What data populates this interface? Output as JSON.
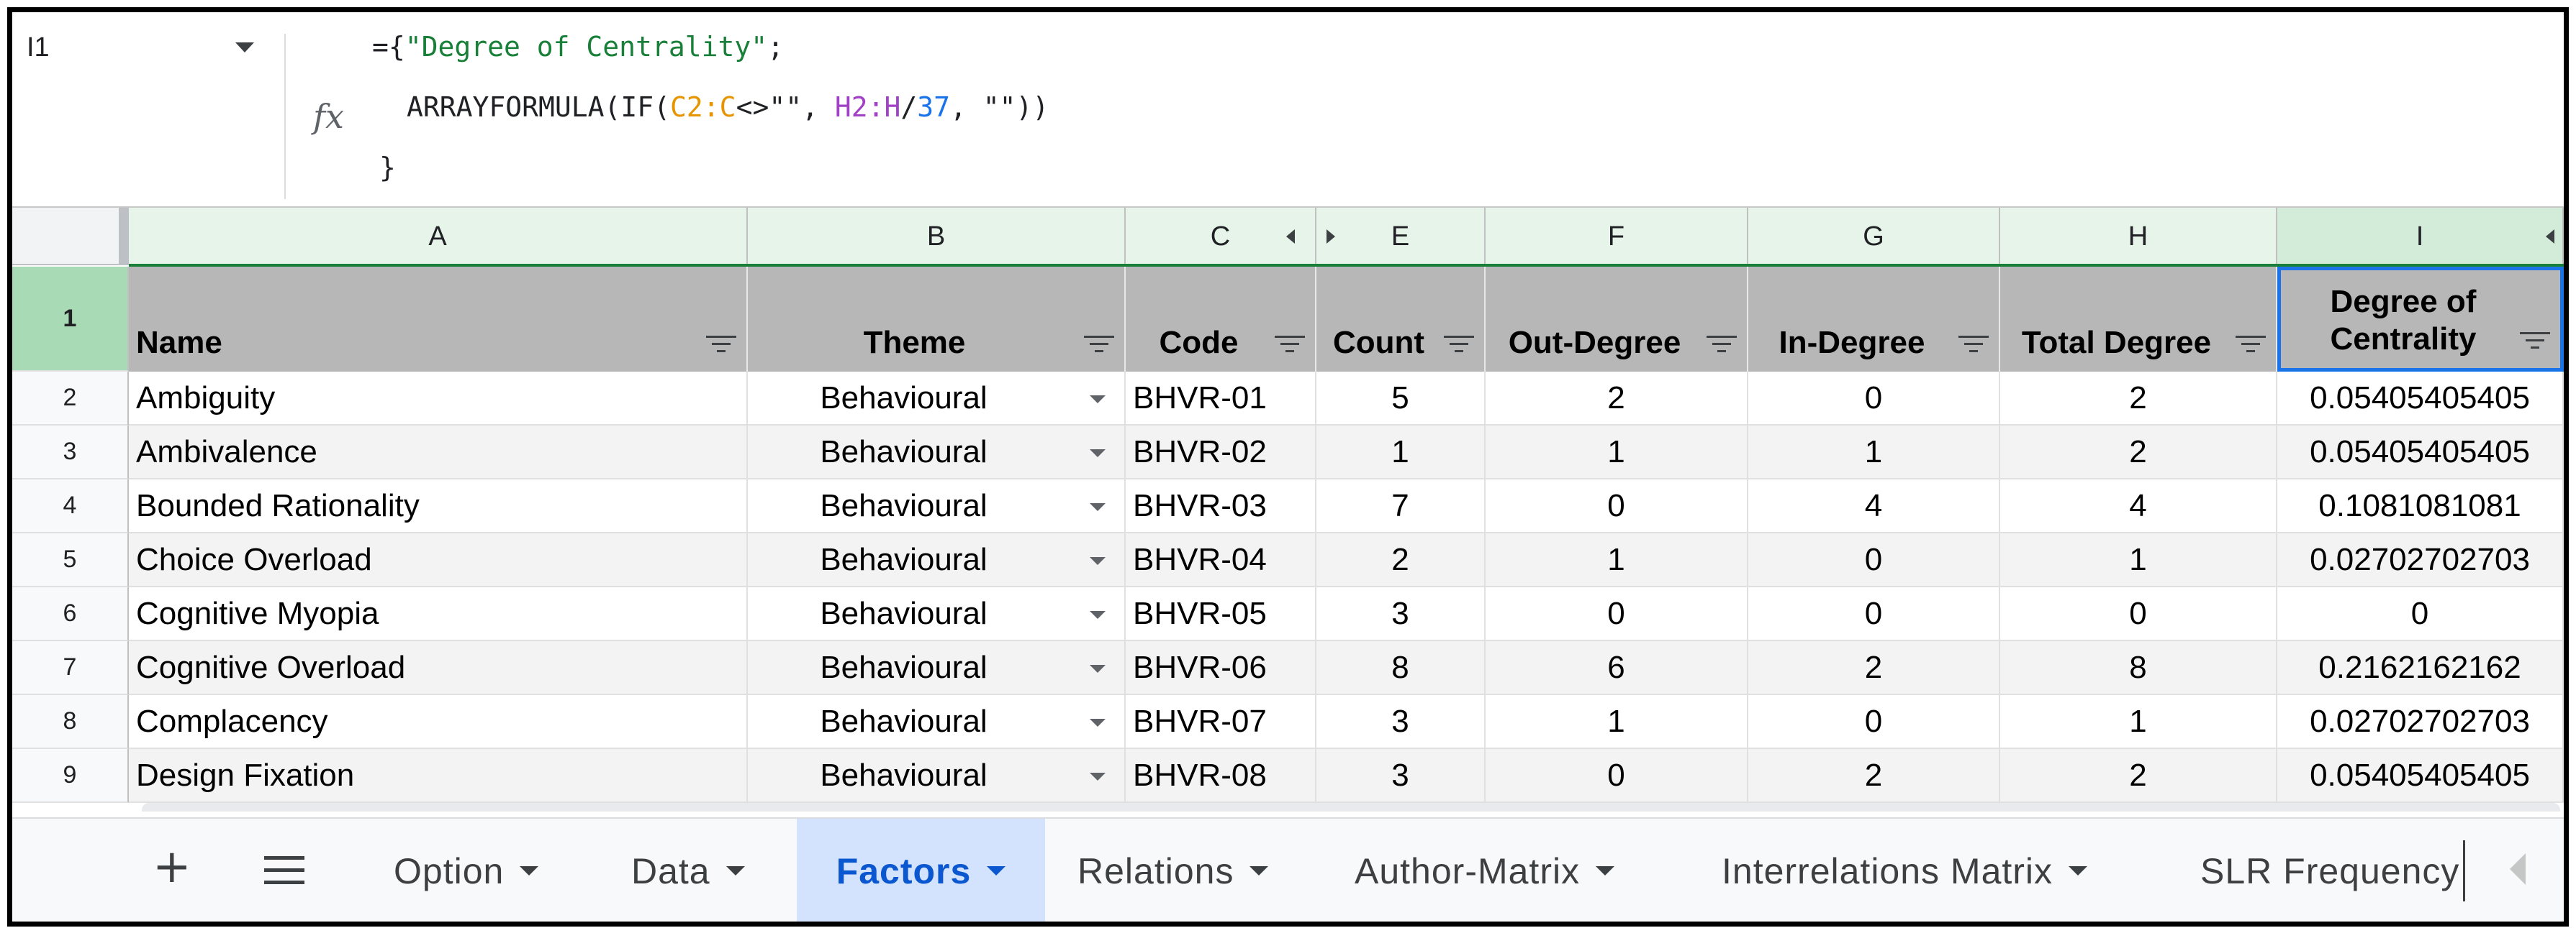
{
  "formula_bar": {
    "cell_ref": "I1",
    "line1_prefix": "={",
    "line1_string": "\"Degree of Centrality\"",
    "line1_suffix": ";",
    "fx_label": "fx",
    "line2_func": "ARRAYFORMULA(IF(",
    "line2_range1": "C2:C",
    "line2_op": "<>\"\", ",
    "line2_range2": "H2:H",
    "line2_div": "/",
    "line2_num": "37",
    "line2_tail": ", \"\"))",
    "line3": "}"
  },
  "columns": [
    "A",
    "B",
    "C",
    "E",
    "F",
    "G",
    "H",
    "I"
  ],
  "headers": [
    "Name",
    "Theme",
    "Code",
    "Count",
    "Out-Degree",
    "In-Degree",
    "Total Degree",
    "Degree of Centrality"
  ],
  "rows": [
    {
      "num": "1"
    },
    {
      "num": "2",
      "name": "Ambiguity",
      "theme": "Behavioural",
      "code": "BHVR-01",
      "count": "5",
      "out": "2",
      "in": "0",
      "total": "2",
      "centrality": "0.05405405405"
    },
    {
      "num": "3",
      "name": "Ambivalence",
      "theme": "Behavioural",
      "code": "BHVR-02",
      "count": "1",
      "out": "1",
      "in": "1",
      "total": "2",
      "centrality": "0.05405405405"
    },
    {
      "num": "4",
      "name": "Bounded Rationality",
      "theme": "Behavioural",
      "code": "BHVR-03",
      "count": "7",
      "out": "0",
      "in": "4",
      "total": "4",
      "centrality": "0.1081081081"
    },
    {
      "num": "5",
      "name": "Choice Overload",
      "theme": "Behavioural",
      "code": "BHVR-04",
      "count": "2",
      "out": "1",
      "in": "0",
      "total": "1",
      "centrality": "0.02702702703"
    },
    {
      "num": "6",
      "name": "Cognitive Myopia",
      "theme": "Behavioural",
      "code": "BHVR-05",
      "count": "3",
      "out": "0",
      "in": "0",
      "total": "0",
      "centrality": "0"
    },
    {
      "num": "7",
      "name": "Cognitive Overload",
      "theme": "Behavioural",
      "code": "BHVR-06",
      "count": "8",
      "out": "6",
      "in": "2",
      "total": "8",
      "centrality": "0.2162162162"
    },
    {
      "num": "8",
      "name": "Complacency",
      "theme": "Behavioural",
      "code": "BHVR-07",
      "count": "3",
      "out": "1",
      "in": "0",
      "total": "1",
      "centrality": "0.02702702703"
    },
    {
      "num": "9",
      "name": "Design Fixation",
      "theme": "Behavioural",
      "code": "BHVR-08",
      "count": "3",
      "out": "0",
      "in": "2",
      "total": "2",
      "centrality": "0.05405405405"
    }
  ],
  "tabs": {
    "plus": "+",
    "items": [
      "Option",
      "Data",
      "Factors",
      "Relations",
      "Author-Matrix",
      "Interrelations Matrix",
      "SLR Frequency"
    ],
    "active": "Factors"
  }
}
